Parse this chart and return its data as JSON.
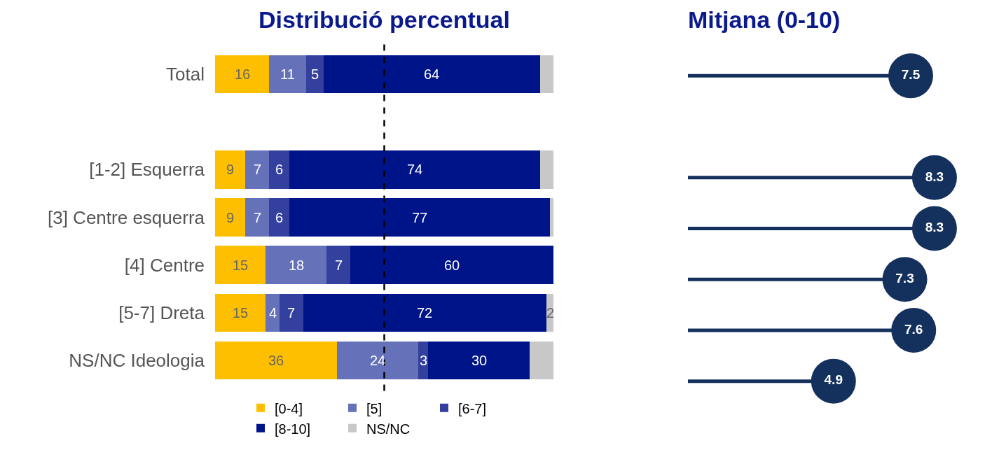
{
  "chart_data": [
    {
      "type": "bar",
      "orientation": "horizontal",
      "stacked": true,
      "title": "Distribució percentual",
      "categories": [
        "Total",
        null,
        "[1-2] Esquerra",
        "[3] Centre esquerra",
        "[4] Centre",
        "[5-7] Dreta",
        "NS/NC Ideologia"
      ],
      "series": [
        {
          "name": "[0-4]",
          "color": "#fdbf00",
          "values": [
            16,
            null,
            9,
            9,
            15,
            15,
            36
          ],
          "value_labels": [
            "16",
            null,
            "9",
            "9",
            "15",
            "15",
            "36"
          ]
        },
        {
          "name": "[5]",
          "color": "#6571b9",
          "values": [
            11,
            null,
            7,
            7,
            18,
            4,
            24
          ],
          "value_labels": [
            "11",
            null,
            "7",
            "7",
            "18",
            "4",
            "24"
          ]
        },
        {
          "name": "[6-7]",
          "color": "#33409e",
          "values": [
            5,
            null,
            6,
            6,
            7,
            7,
            3
          ],
          "value_labels": [
            "5",
            null,
            "6",
            "6",
            "7",
            "7",
            "3"
          ]
        },
        {
          "name": "[8-10]",
          "color": "#001489",
          "values": [
            64,
            null,
            74,
            77,
            60,
            72,
            30
          ],
          "value_labels": [
            "64",
            null,
            "74",
            "77",
            "60",
            "72",
            "30"
          ]
        },
        {
          "name": "NS/NC",
          "color": "#c8c8c8",
          "values": [
            4,
            null,
            4,
            1,
            0,
            2,
            7
          ],
          "value_labels": [
            null,
            null,
            null,
            null,
            null,
            "2",
            null
          ]
        }
      ],
      "xlim": [
        0,
        100
      ],
      "tick_labels": "y",
      "legend": "bottom",
      "ref_lines": [
        {
          "axis": "x",
          "value": 50,
          "color": "#000000",
          "line_style": "dashed"
        }
      ]
    },
    {
      "type": "lollipop",
      "orientation": "horizontal",
      "title": "Mitjana (0-10)",
      "categories": [
        null,
        null,
        null,
        null,
        null,
        null,
        null
      ],
      "values": [
        7.5,
        null,
        8.3,
        8.3,
        7.3,
        7.6,
        4.9
      ],
      "color": "#14305c",
      "xlim": [
        0,
        10
      ],
      "tick_labels": false,
      "data_labels": true
    }
  ]
}
